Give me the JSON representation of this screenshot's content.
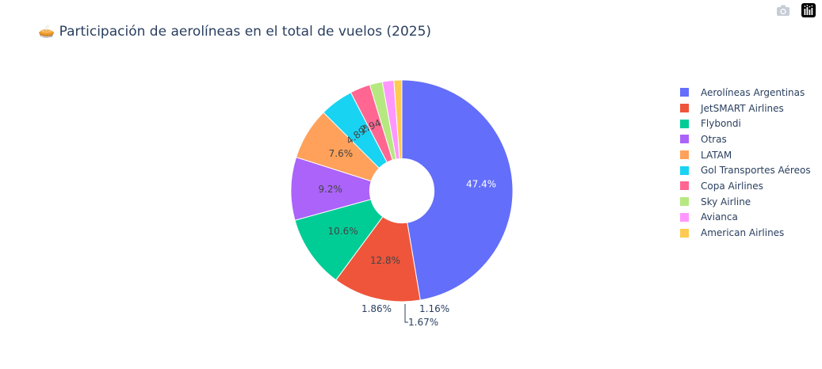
{
  "title": "Participación de aerolíneas en el total de vuelos (2025)",
  "title_emoji": "🥧",
  "modebar": [
    {
      "name": "camera-icon",
      "title": "Download plot as a png"
    },
    {
      "name": "plotly-logo-icon",
      "title": "Produced with Plotly"
    }
  ],
  "chart_data": {
    "type": "pie",
    "hole": 0.29,
    "sort": "descending",
    "direction": "clockwise",
    "categories": [
      "Aerolíneas Argentinas",
      "JetSMART Airlines",
      "Flybondi",
      "Otras",
      "LATAM",
      "Gol Transportes Aéreos",
      "Copa Airlines",
      "Sky Airline",
      "Avianca",
      "American Airlines"
    ],
    "values": [
      47.4,
      12.8,
      10.6,
      9.2,
      7.6,
      4.89,
      2.94,
      1.86,
      1.67,
      1.16
    ],
    "labels": [
      "47.4%",
      "12.8%",
      "10.6%",
      "9.2%",
      "7.6%",
      "4.89%",
      "2.94%",
      "1.86%",
      "1.67%",
      "1.16%"
    ],
    "colors": [
      "#636efa",
      "#EF553B",
      "#00cc96",
      "#ab63fa",
      "#FFA15A",
      "#19d3f3",
      "#FF6692",
      "#B6E880",
      "#FF97FF",
      "#FECB52"
    ],
    "legend_position": "right"
  }
}
